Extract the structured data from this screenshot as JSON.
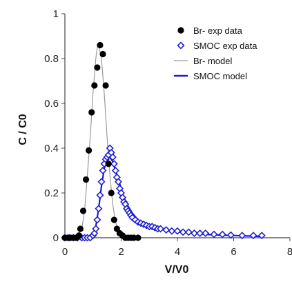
{
  "chart_data": {
    "type": "scatter",
    "title": "",
    "xlabel": "V/V0",
    "ylabel": "C / C0",
    "xlim": [
      0,
      8
    ],
    "ylim": [
      0,
      1
    ],
    "xticks": [
      0,
      2,
      4,
      6,
      8
    ],
    "yticks": [
      0,
      0.2,
      0.4,
      0.6,
      0.8,
      1
    ],
    "xtick_labels": [
      "0",
      "2",
      "4",
      "6",
      "8"
    ],
    "ytick_labels": [
      "0",
      "0.2",
      "0.4",
      "0.6",
      "0.8",
      "1"
    ],
    "grid": false,
    "legend_position": "top-right",
    "series": [
      {
        "name": "Br- exp data",
        "kind": "scatter",
        "marker": "filled-circle",
        "color": "#000000",
        "x": [
          0.0,
          0.1,
          0.2,
          0.3,
          0.4,
          0.5,
          0.55,
          0.65,
          0.75,
          0.85,
          0.95,
          1.05,
          1.15,
          1.25,
          1.35,
          1.45,
          1.55,
          1.65,
          1.75,
          1.85,
          1.95,
          2.05,
          2.15,
          2.25,
          2.35,
          2.45,
          2.6
        ],
        "y": [
          0.0,
          0.0,
          0.0,
          0.0,
          0.0,
          0.01,
          0.04,
          0.12,
          0.26,
          0.39,
          0.56,
          0.68,
          0.76,
          0.86,
          0.82,
          0.68,
          0.33,
          0.2,
          0.08,
          0.04,
          0.02,
          0.01,
          0.0,
          0.0,
          0.0,
          0.0,
          0.0
        ]
      },
      {
        "name": "SMOC exp data",
        "kind": "scatter",
        "marker": "open-diamond",
        "color": "#1f1fd0",
        "x": [
          0.0,
          0.15,
          0.3,
          0.45,
          0.6,
          0.7,
          0.8,
          0.9,
          1.0,
          1.05,
          1.1,
          1.15,
          1.2,
          1.25,
          1.3,
          1.35,
          1.4,
          1.45,
          1.5,
          1.55,
          1.6,
          1.65,
          1.7,
          1.75,
          1.8,
          1.85,
          1.9,
          1.95,
          2.0,
          2.05,
          2.1,
          2.15,
          2.2,
          2.25,
          2.3,
          2.35,
          2.4,
          2.5,
          2.6,
          2.7,
          2.8,
          2.9,
          3.0,
          3.1,
          3.2,
          3.3,
          3.4,
          3.6,
          3.8,
          4.0,
          4.2,
          4.4,
          4.6,
          4.8,
          5.0,
          5.3,
          5.6,
          5.9,
          6.3,
          6.7,
          7.0
        ],
        "y": [
          0.0,
          0.0,
          0.0,
          0.0,
          0.0,
          0.0,
          0.0,
          0.0,
          0.01,
          0.02,
          0.04,
          0.08,
          0.13,
          0.19,
          0.25,
          0.3,
          0.33,
          0.35,
          0.36,
          0.37,
          0.4,
          0.38,
          0.36,
          0.33,
          0.3,
          0.27,
          0.25,
          0.22,
          0.2,
          0.18,
          0.16,
          0.15,
          0.13,
          0.12,
          0.11,
          0.1,
          0.09,
          0.08,
          0.07,
          0.065,
          0.06,
          0.055,
          0.05,
          0.05,
          0.045,
          0.04,
          0.04,
          0.035,
          0.03,
          0.03,
          0.025,
          0.025,
          0.02,
          0.02,
          0.02,
          0.015,
          0.015,
          0.012,
          0.01,
          0.01,
          0.01
        ]
      },
      {
        "name": "Br- model",
        "kind": "line",
        "color": "#9a9a9a",
        "x": [
          0.0,
          0.4,
          0.6,
          0.7,
          0.8,
          0.9,
          1.0,
          1.1,
          1.15,
          1.2,
          1.3,
          1.4,
          1.5,
          1.6,
          1.7,
          1.8,
          1.9,
          2.0,
          2.1,
          2.3,
          2.6
        ],
        "y": [
          0.0,
          0.0,
          0.04,
          0.12,
          0.28,
          0.45,
          0.65,
          0.8,
          0.85,
          0.86,
          0.8,
          0.64,
          0.45,
          0.28,
          0.15,
          0.07,
          0.03,
          0.015,
          0.005,
          0.0,
          0.0
        ]
      },
      {
        "name": "SMOC model",
        "kind": "line",
        "color": "#1a1ad6",
        "x": [
          0.0,
          0.6,
          0.9,
          1.0,
          1.1,
          1.2,
          1.3,
          1.4,
          1.5,
          1.6,
          1.7,
          1.8,
          1.9,
          2.0,
          2.1,
          2.2,
          2.4,
          2.6,
          2.8,
          3.0,
          3.3,
          3.6,
          4.0,
          4.5,
          5.0,
          5.5,
          6.0,
          6.5,
          7.0
        ],
        "y": [
          0.0,
          0.0,
          0.0,
          0.01,
          0.05,
          0.13,
          0.23,
          0.31,
          0.35,
          0.36,
          0.34,
          0.3,
          0.26,
          0.22,
          0.18,
          0.15,
          0.11,
          0.08,
          0.06,
          0.05,
          0.04,
          0.035,
          0.028,
          0.02,
          0.015,
          0.012,
          0.01,
          0.008,
          0.006
        ]
      }
    ],
    "legend": [
      {
        "label": "Br- exp data",
        "symbol": "filled-circle",
        "color": "#000000"
      },
      {
        "label": "SMOC exp data",
        "symbol": "open-diamond",
        "color": "#1f1fd0"
      },
      {
        "label": "Br- model",
        "symbol": "line",
        "color": "#9a9a9a"
      },
      {
        "label": "SMOC model",
        "symbol": "line",
        "color": "#1a1ad6"
      }
    ]
  }
}
